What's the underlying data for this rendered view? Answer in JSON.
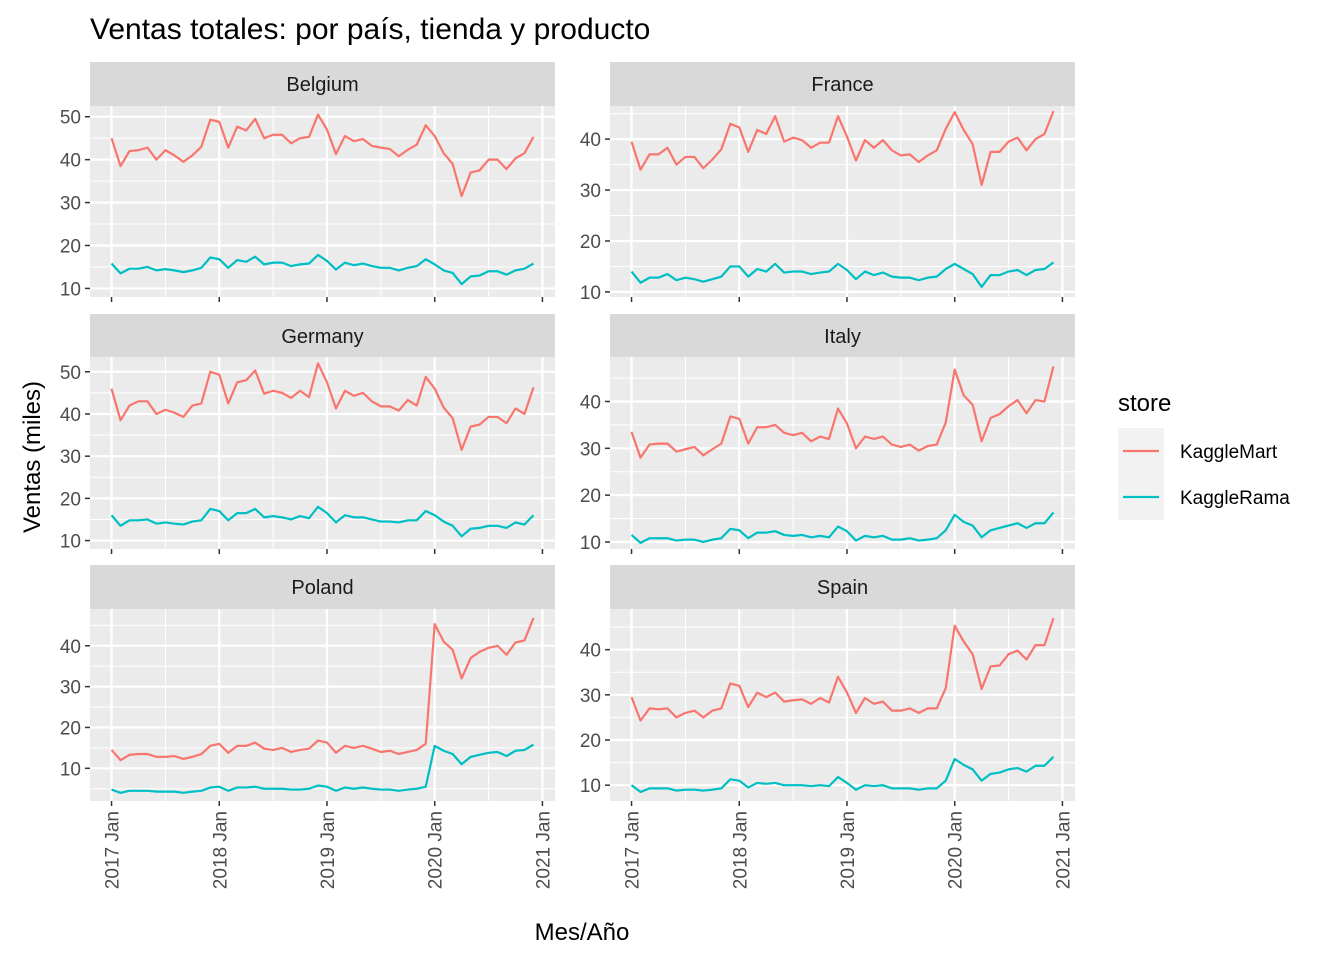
{
  "chart_data": {
    "type": "line",
    "title": "Ventas totales: por país, tienda y producto",
    "xlabel": "Mes/Año",
    "ylabel": "Ventas (miles)",
    "x_tick_labels": [
      "2017 Jan",
      "2018 Jan",
      "2019 Jan",
      "2020 Jan",
      "2021 Jan"
    ],
    "x": [
      "2017-01",
      "2017-02",
      "2017-03",
      "2017-04",
      "2017-05",
      "2017-06",
      "2017-07",
      "2017-08",
      "2017-09",
      "2017-10",
      "2017-11",
      "2017-12",
      "2018-01",
      "2018-02",
      "2018-03",
      "2018-04",
      "2018-05",
      "2018-06",
      "2018-07",
      "2018-08",
      "2018-09",
      "2018-10",
      "2018-11",
      "2018-12",
      "2019-01",
      "2019-02",
      "2019-03",
      "2019-04",
      "2019-05",
      "2019-06",
      "2019-07",
      "2019-08",
      "2019-09",
      "2019-10",
      "2019-11",
      "2019-12",
      "2020-01",
      "2020-02",
      "2020-03",
      "2020-04",
      "2020-05",
      "2020-06",
      "2020-07",
      "2020-08",
      "2020-09",
      "2020-10",
      "2020-11",
      "2020-12"
    ],
    "legend": {
      "title": "store",
      "position": "right",
      "entries": [
        {
          "name": "KaggleMart",
          "color": "#F8766D"
        },
        {
          "name": "KaggleRama",
          "color": "#00BFC4"
        }
      ]
    },
    "grid": true,
    "panels": [
      {
        "facet": "Belgium",
        "ylim": [
          8,
          52.5
        ],
        "y_ticks": [
          10,
          20,
          30,
          40,
          50
        ],
        "series": [
          {
            "name": "KaggleMart",
            "values": [
              45.0,
              38.5,
              42.0,
              42.2,
              42.8,
              40.0,
              42.2,
              41.0,
              39.5,
              41.0,
              43.0,
              49.3,
              48.8,
              42.8,
              47.7,
              46.8,
              49.5,
              45.0,
              45.8,
              45.8,
              43.8,
              45.0,
              45.3,
              50.5,
              47.0,
              41.3,
              45.5,
              44.3,
              44.8,
              43.2,
              42.8,
              42.5,
              40.8,
              42.3,
              43.5,
              48.0,
              45.5,
              41.5,
              39.0,
              31.5,
              37.0,
              37.5,
              40.0,
              40.0,
              37.8,
              40.3,
              41.5,
              45.3
            ]
          },
          {
            "name": "KaggleRama",
            "values": [
              15.8,
              13.5,
              14.6,
              14.6,
              15.0,
              14.2,
              14.5,
              14.2,
              13.8,
              14.2,
              14.8,
              17.2,
              16.8,
              14.8,
              16.6,
              16.2,
              17.4,
              15.6,
              16.0,
              16.0,
              15.2,
              15.6,
              15.8,
              17.8,
              16.4,
              14.4,
              16.0,
              15.4,
              15.8,
              15.2,
              14.8,
              14.8,
              14.2,
              14.8,
              15.2,
              16.8,
              15.6,
              14.2,
              13.6,
              11.0,
              12.8,
              13.0,
              14.0,
              14.0,
              13.2,
              14.2,
              14.6,
              15.8
            ]
          }
        ]
      },
      {
        "facet": "France",
        "ylim": [
          9,
          46.5
        ],
        "y_ticks": [
          10,
          20,
          30,
          40
        ],
        "series": [
          {
            "name": "KaggleMart",
            "values": [
              39.5,
              34.0,
              37.0,
              37.0,
              38.3,
              35.0,
              36.5,
              36.5,
              34.3,
              36.0,
              38.0,
              43.0,
              42.3,
              37.5,
              41.8,
              41.0,
              44.5,
              39.5,
              40.3,
              39.8,
              38.3,
              39.3,
              39.3,
              44.5,
              40.5,
              35.8,
              39.8,
              38.3,
              39.8,
              37.8,
              36.8,
              37.0,
              35.5,
              36.8,
              37.8,
              42.0,
              45.3,
              41.8,
              39.0,
              31.0,
              37.5,
              37.5,
              39.5,
              40.3,
              37.8,
              40.0,
              41.0,
              45.5
            ]
          },
          {
            "name": "KaggleRama",
            "values": [
              14.0,
              11.8,
              12.8,
              12.8,
              13.5,
              12.3,
              12.8,
              12.5,
              12.0,
              12.5,
              13.0,
              15.0,
              15.0,
              13.0,
              14.5,
              14.0,
              15.5,
              13.8,
              14.0,
              14.0,
              13.5,
              13.8,
              14.0,
              15.5,
              14.3,
              12.5,
              14.0,
              13.3,
              13.8,
              13.0,
              12.8,
              12.8,
              12.3,
              12.8,
              13.0,
              14.5,
              15.5,
              14.5,
              13.5,
              11.0,
              13.3,
              13.3,
              14.0,
              14.3,
              13.3,
              14.3,
              14.5,
              15.8
            ]
          }
        ]
      },
      {
        "facet": "Germany",
        "ylim": [
          8,
          53.5
        ],
        "y_ticks": [
          10,
          20,
          30,
          40,
          50
        ],
        "series": [
          {
            "name": "KaggleMart",
            "values": [
              46.0,
              38.5,
              42.0,
              43.0,
              43.0,
              40.0,
              41.0,
              40.3,
              39.3,
              42.0,
              42.5,
              50.0,
              49.3,
              42.5,
              47.5,
              48.0,
              50.3,
              44.8,
              45.5,
              45.0,
              43.8,
              45.5,
              44.0,
              52.0,
              47.5,
              41.3,
              45.5,
              44.3,
              45.0,
              43.0,
              41.8,
              41.8,
              40.8,
              43.3,
              42.0,
              48.8,
              46.0,
              41.5,
              39.0,
              31.5,
              37.0,
              37.5,
              39.3,
              39.3,
              37.8,
              41.3,
              40.0,
              46.3
            ]
          },
          {
            "name": "KaggleRama",
            "values": [
              16.0,
              13.5,
              14.8,
              14.8,
              15.0,
              14.0,
              14.3,
              14.0,
              13.8,
              14.5,
              14.8,
              17.5,
              17.0,
              14.8,
              16.5,
              16.5,
              17.5,
              15.5,
              15.8,
              15.5,
              15.0,
              15.8,
              15.3,
              18.0,
              16.5,
              14.3,
              16.0,
              15.5,
              15.5,
              15.0,
              14.5,
              14.5,
              14.3,
              14.8,
              14.8,
              17.0,
              16.0,
              14.5,
              13.5,
              11.0,
              12.8,
              13.0,
              13.5,
              13.5,
              13.0,
              14.3,
              13.8,
              16.0
            ]
          }
        ]
      },
      {
        "facet": "Italy",
        "ylim": [
          8.5,
          49.5
        ],
        "y_ticks": [
          10,
          20,
          30,
          40
        ],
        "series": [
          {
            "name": "KaggleMart",
            "values": [
              33.5,
              28.0,
              30.8,
              31.0,
              31.0,
              29.3,
              29.8,
              30.3,
              28.5,
              29.8,
              31.0,
              36.8,
              36.3,
              31.0,
              34.5,
              34.5,
              35.0,
              33.3,
              32.8,
              33.3,
              31.5,
              32.5,
              32.0,
              38.5,
              35.3,
              30.0,
              32.5,
              32.0,
              32.5,
              30.8,
              30.3,
              30.8,
              29.5,
              30.5,
              30.8,
              35.5,
              46.8,
              41.3,
              39.3,
              31.5,
              36.5,
              37.3,
              39.0,
              40.3,
              37.5,
              40.3,
              40.0,
              47.5
            ]
          },
          {
            "name": "KaggleRama",
            "values": [
              11.5,
              9.8,
              10.8,
              10.8,
              10.8,
              10.3,
              10.5,
              10.5,
              10.0,
              10.5,
              10.8,
              12.8,
              12.5,
              10.8,
              12.0,
              12.0,
              12.3,
              11.5,
              11.3,
              11.5,
              11.0,
              11.3,
              11.0,
              13.3,
              12.3,
              10.3,
              11.3,
              11.0,
              11.3,
              10.5,
              10.5,
              10.8,
              10.3,
              10.5,
              10.8,
              12.5,
              15.8,
              14.3,
              13.5,
              11.0,
              12.5,
              13.0,
              13.5,
              14.0,
              13.0,
              14.0,
              14.0,
              16.3
            ]
          }
        ]
      },
      {
        "facet": "Poland",
        "ylim": [
          2,
          49
        ],
        "y_ticks": [
          10,
          20,
          30,
          40
        ],
        "series": [
          {
            "name": "KaggleMart",
            "values": [
              14.5,
              12.0,
              13.3,
              13.5,
              13.5,
              12.8,
              12.8,
              13.0,
              12.3,
              12.8,
              13.5,
              15.5,
              16.0,
              13.8,
              15.5,
              15.5,
              16.3,
              14.8,
              14.5,
              15.0,
              14.0,
              14.5,
              14.8,
              16.8,
              16.3,
              13.8,
              15.5,
              15.0,
              15.5,
              14.8,
              14.0,
              14.3,
              13.5,
              14.0,
              14.5,
              16.0,
              45.3,
              41.0,
              39.0,
              32.0,
              37.0,
              38.5,
              39.5,
              40.0,
              37.8,
              40.8,
              41.3,
              46.8
            ]
          },
          {
            "name": "KaggleRama",
            "values": [
              4.8,
              4.0,
              4.5,
              4.5,
              4.5,
              4.3,
              4.3,
              4.3,
              4.0,
              4.3,
              4.5,
              5.3,
              5.5,
              4.5,
              5.3,
              5.3,
              5.5,
              5.0,
              5.0,
              5.0,
              4.8,
              4.8,
              5.0,
              5.8,
              5.5,
              4.5,
              5.3,
              5.0,
              5.3,
              5.0,
              4.8,
              4.8,
              4.5,
              4.8,
              5.0,
              5.5,
              15.5,
              14.3,
              13.5,
              11.0,
              12.8,
              13.3,
              13.8,
              14.0,
              13.0,
              14.3,
              14.5,
              15.8
            ]
          }
        ]
      },
      {
        "facet": "Spain",
        "ylim": [
          6.5,
          49
        ],
        "y_ticks": [
          10,
          20,
          30,
          40
        ],
        "series": [
          {
            "name": "KaggleMart",
            "values": [
              29.5,
              24.3,
              27.0,
              26.8,
              27.0,
              25.0,
              26.0,
              26.5,
              25.0,
              26.5,
              27.0,
              32.5,
              32.0,
              27.3,
              30.5,
              29.5,
              30.5,
              28.5,
              28.8,
              29.0,
              28.0,
              29.3,
              28.3,
              34.0,
              30.5,
              26.0,
              29.3,
              28.0,
              28.5,
              26.5,
              26.5,
              27.0,
              26.0,
              27.0,
              27.0,
              31.5,
              45.3,
              41.8,
              39.0,
              31.3,
              36.3,
              36.5,
              39.0,
              39.8,
              37.8,
              41.0,
              41.0,
              47.0
            ]
          },
          {
            "name": "KaggleRama",
            "values": [
              10.0,
              8.5,
              9.3,
              9.3,
              9.3,
              8.8,
              9.0,
              9.0,
              8.8,
              9.0,
              9.3,
              11.3,
              11.0,
              9.5,
              10.5,
              10.3,
              10.5,
              10.0,
              10.0,
              10.0,
              9.8,
              10.0,
              9.8,
              11.8,
              10.5,
              9.0,
              10.0,
              9.8,
              10.0,
              9.3,
              9.3,
              9.3,
              9.0,
              9.3,
              9.3,
              11.0,
              15.8,
              14.5,
              13.5,
              11.0,
              12.5,
              12.8,
              13.5,
              13.8,
              13.0,
              14.3,
              14.3,
              16.3
            ]
          }
        ]
      }
    ]
  }
}
